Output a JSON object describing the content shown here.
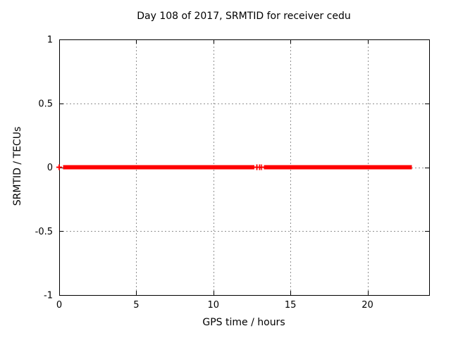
{
  "chart_data": {
    "type": "scatter",
    "title": "Day 108 of 2017, SRMTID for receiver cedu",
    "xlabel": "GPS time / hours",
    "ylabel": "SRMTID / TECUs",
    "xlim": [
      0,
      24
    ],
    "ylim": [
      -1,
      1
    ],
    "xticks": [
      0,
      5,
      10,
      15,
      20
    ],
    "xtick_labels": [
      "0",
      "5",
      "10",
      "15",
      "20"
    ],
    "yticks": [
      -1,
      -0.5,
      0,
      0.5,
      1
    ],
    "ytick_labels": [
      "-1",
      "-0.5",
      "0",
      "0.5",
      "1"
    ],
    "grid": true,
    "legend_position": "none",
    "grid_color": "#909090",
    "border_color": "#000000",
    "background_color": "#ffffff",
    "series": [
      {
        "name": "SRMTID",
        "marker": "plus",
        "color": "#ff0000",
        "y_value": 0,
        "dense_segments_hours": [
          [
            0.25,
            12.66
          ],
          [
            13.28,
            22.88
          ]
        ],
        "isolated_points_hours": [
          0.0,
          12.82,
          13.01,
          13.13
        ]
      }
    ]
  }
}
